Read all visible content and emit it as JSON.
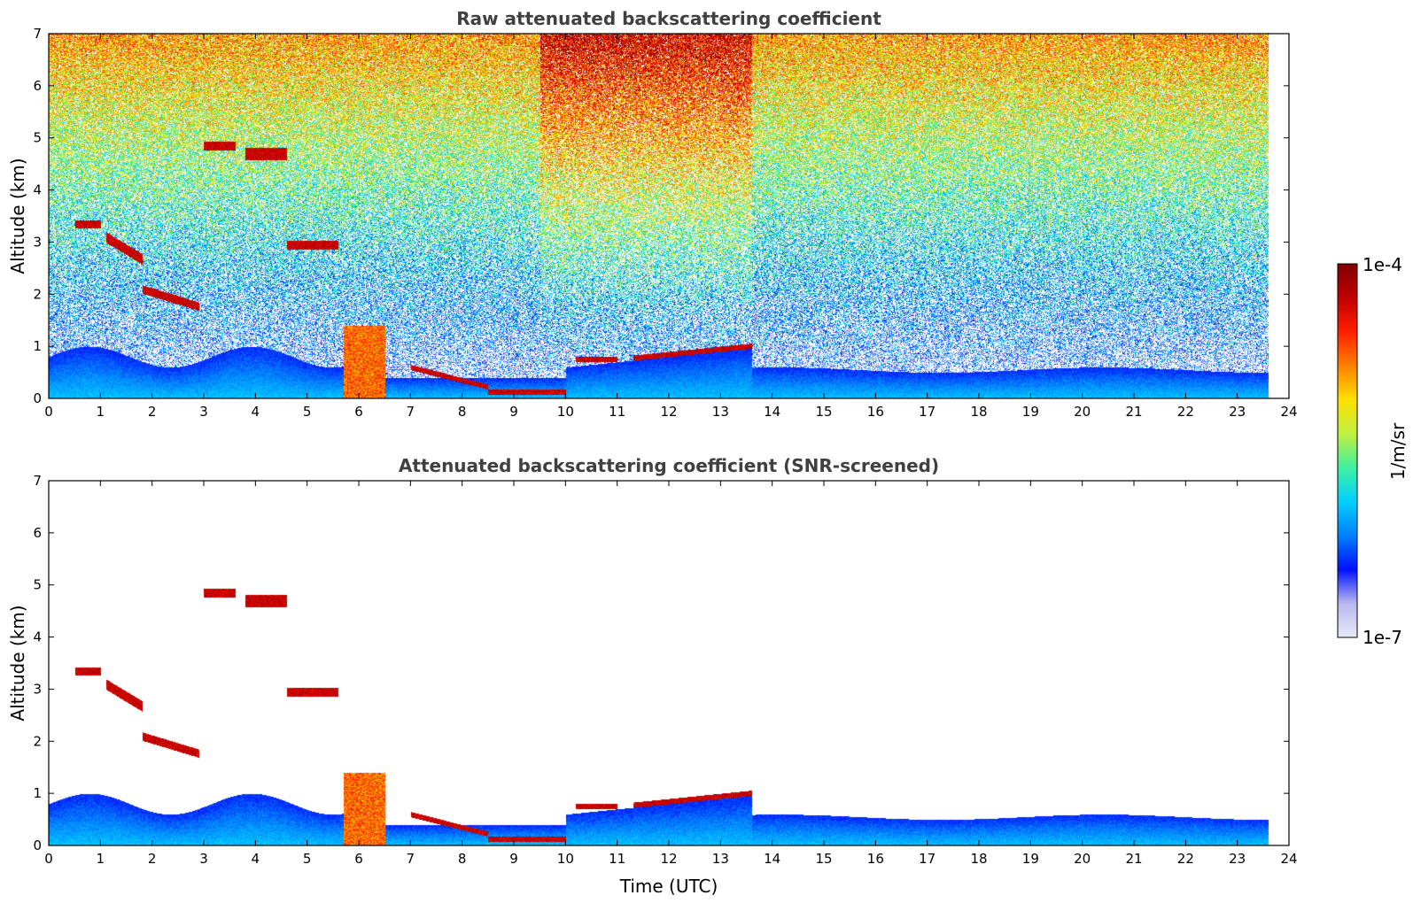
{
  "chart_data": [
    {
      "type": "heatmap",
      "title": "Raw attenuated backscattering coefficient",
      "xlabel": "",
      "ylabel": "Altitude (km)",
      "xlim": [
        0,
        24
      ],
      "ylim": [
        0,
        7
      ],
      "xticks": [
        "0",
        "1",
        "2",
        "3",
        "4",
        "5",
        "6",
        "7",
        "8",
        "9",
        "10",
        "11",
        "12",
        "13",
        "14",
        "15",
        "16",
        "17",
        "18",
        "19",
        "20",
        "21",
        "22",
        "23",
        "24"
      ],
      "yticks": [
        "0",
        "1",
        "2",
        "3",
        "4",
        "5",
        "6",
        "7"
      ],
      "data_end_time": 23.6,
      "features": [
        {
          "name": "boundary-layer",
          "start": 0,
          "end": 23.6,
          "top_km": 0.6
        },
        {
          "name": "cloud-layer",
          "start": 8.5,
          "end": 10.0,
          "base_km": 0.1
        },
        {
          "name": "cloud-layer",
          "start": 11.3,
          "end": 13.6,
          "base_km": 0.85
        },
        {
          "name": "elevated-cloud",
          "start": 3.0,
          "end": 4.5,
          "base_km": 4.8
        }
      ]
    },
    {
      "type": "heatmap",
      "title": "Attenuated backscattering coefficient (SNR-screened)",
      "xlabel": "Time (UTC)",
      "ylabel": "Altitude (km)",
      "xlim": [
        0,
        24
      ],
      "ylim": [
        0,
        7
      ],
      "xticks": [
        "0",
        "1",
        "2",
        "3",
        "4",
        "5",
        "6",
        "7",
        "8",
        "9",
        "10",
        "11",
        "12",
        "13",
        "14",
        "15",
        "16",
        "17",
        "18",
        "19",
        "20",
        "21",
        "22",
        "23",
        "24"
      ],
      "yticks": [
        "0",
        "1",
        "2",
        "3",
        "4",
        "5",
        "6",
        "7"
      ],
      "data_end_time": 23.6
    }
  ],
  "colorbar": {
    "max_label": "1e-4",
    "min_label": "1e-7",
    "unit_label": "1/m/sr",
    "colors": [
      "#e8e8f8",
      "#b8b8f0",
      "#0010ff",
      "#0080ff",
      "#00d0ff",
      "#40f0a0",
      "#c0f040",
      "#ffe000",
      "#ff8000",
      "#ff2000",
      "#c00000",
      "#800000"
    ]
  }
}
